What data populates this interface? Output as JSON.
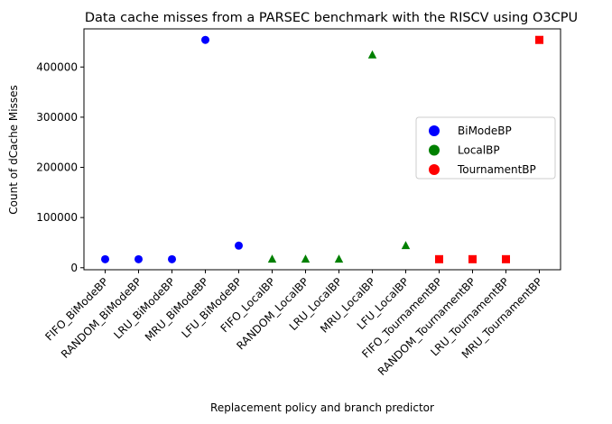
{
  "chart_data": {
    "type": "scatter",
    "title": "Data cache misses from a PARSEC benchmark with the RISCV using O3CPU",
    "xlabel": "Replacement policy and branch predictor",
    "ylabel": "Count of dCache Misses",
    "categories": [
      "FIFO_BiModeBP",
      "RANDOM_BiModeBP",
      "LRU_BiModeBP",
      "MRU_BiModeBP",
      "LFU_BiModeBP",
      "FIFO_LocalBP",
      "RANDOM_LocalBP",
      "LRU_LocalBP",
      "MRU_LocalBP",
      "LFU_LocalBP",
      "FIFO_TournamentBP",
      "RANDOM_TournamentBP",
      "LRU_TournamentBP",
      "MRU_TournamentBP"
    ],
    "ylim": [
      -4000,
      476000
    ],
    "yticks": [
      0,
      100000,
      200000,
      300000,
      400000
    ],
    "grid": false,
    "legend_position": "center-right",
    "series": [
      {
        "name": "BiModeBP",
        "color": "#0000ff",
        "marker": "circle",
        "points": [
          {
            "x": "FIFO_BiModeBP",
            "y": 17000
          },
          {
            "x": "RANDOM_BiModeBP",
            "y": 17000
          },
          {
            "x": "LRU_BiModeBP",
            "y": 17000
          },
          {
            "x": "MRU_BiModeBP",
            "y": 454000
          },
          {
            "x": "LFU_BiModeBP",
            "y": 44000
          }
        ]
      },
      {
        "name": "LocalBP",
        "color": "#008000",
        "marker": "triangle",
        "points": [
          {
            "x": "FIFO_LocalBP",
            "y": 17000
          },
          {
            "x": "RANDOM_LocalBP",
            "y": 17000
          },
          {
            "x": "LRU_LocalBP",
            "y": 17000
          },
          {
            "x": "MRU_LocalBP",
            "y": 424000
          },
          {
            "x": "LFU_LocalBP",
            "y": 44000
          }
        ]
      },
      {
        "name": "TournamentBP",
        "color": "#ff0000",
        "marker": "square",
        "points": [
          {
            "x": "FIFO_TournamentBP",
            "y": 17000
          },
          {
            "x": "RANDOM_TournamentBP",
            "y": 17000
          },
          {
            "x": "LRU_TournamentBP",
            "y": 17000
          },
          {
            "x": "MRU_TournamentBP",
            "y": 454000
          }
        ]
      }
    ]
  }
}
